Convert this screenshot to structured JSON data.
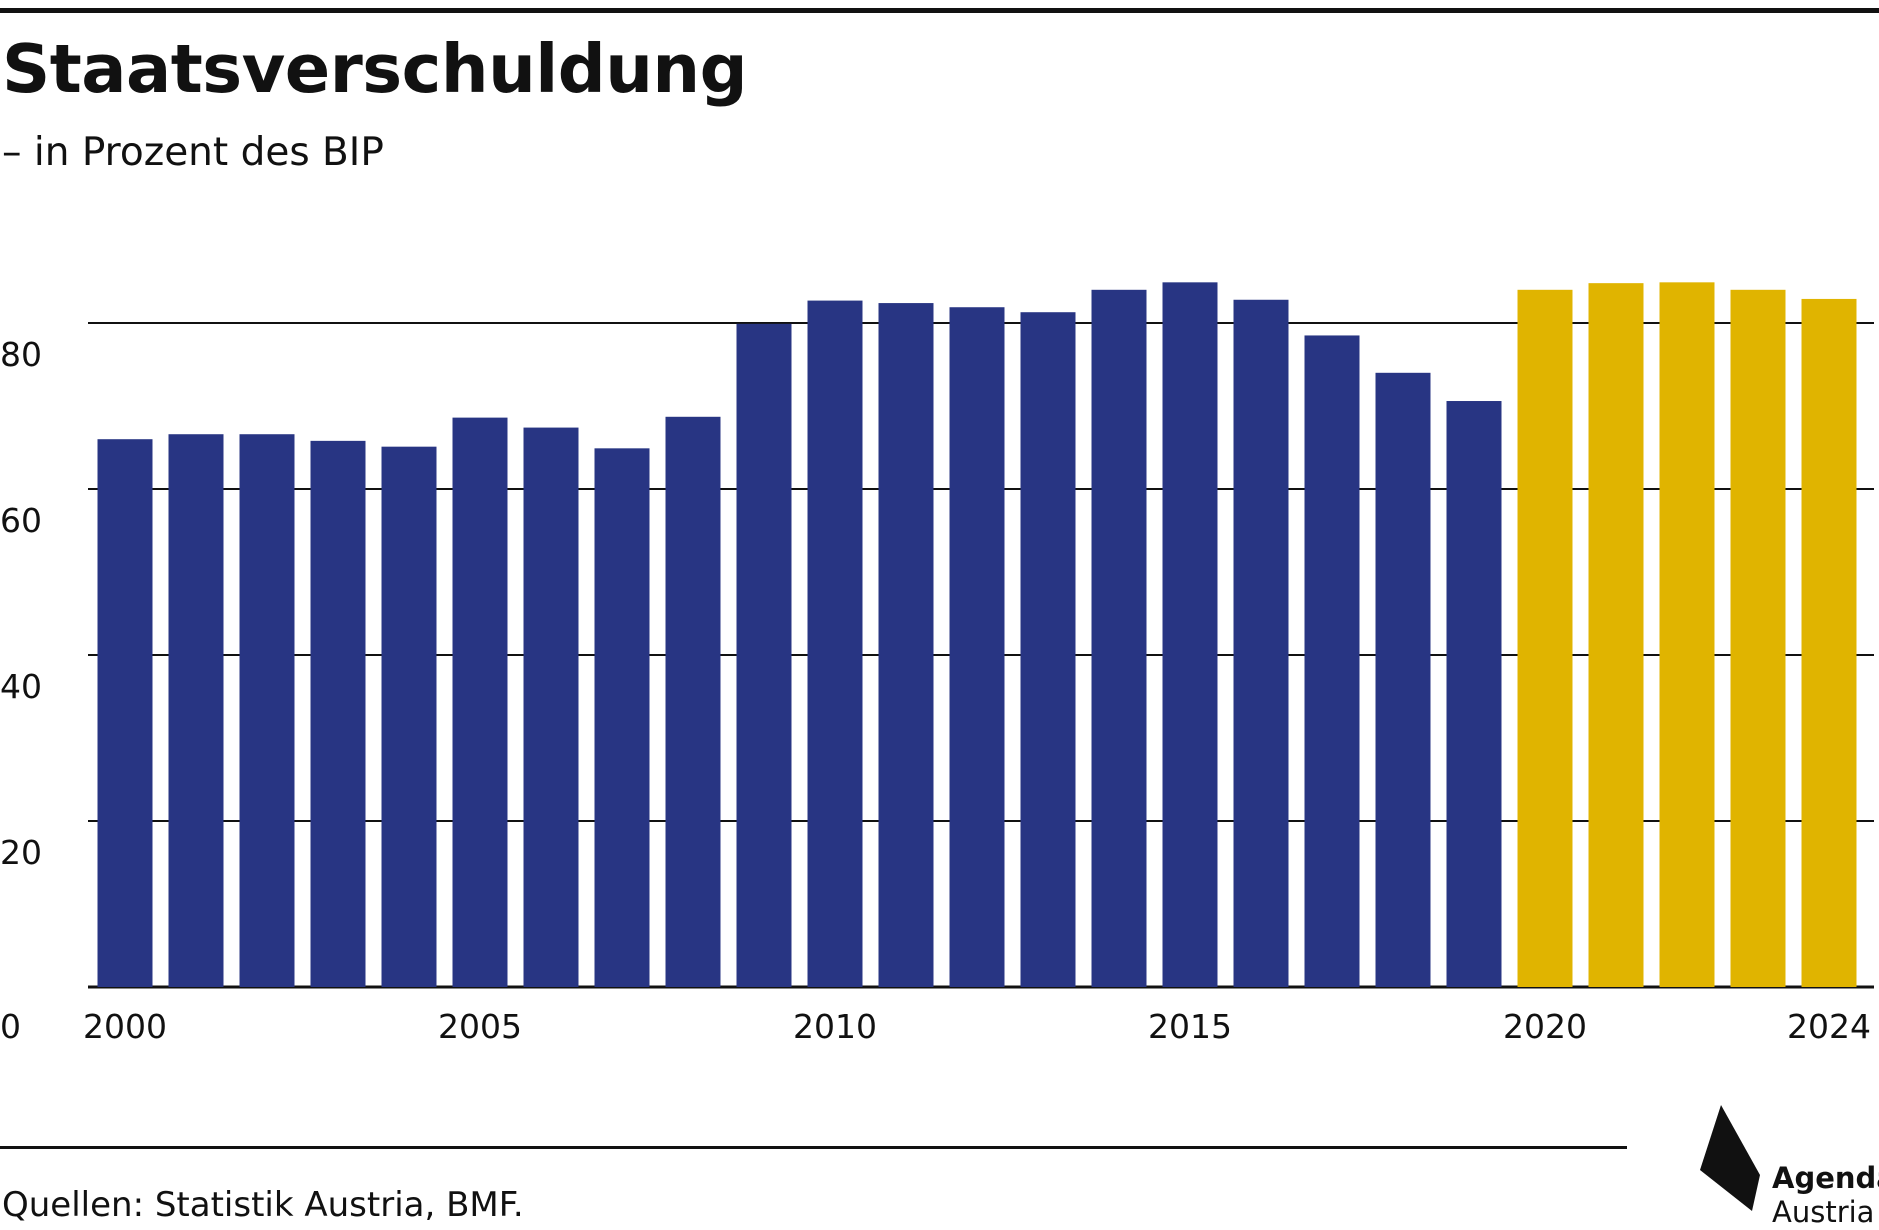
{
  "title": "Staatsverschuldung",
  "subtitle": "– in Prozent des BIP",
  "source": "Quellen: Statistik Austria, BMF.",
  "logo": {
    "line1": "Agenda",
    "line2": "Austria"
  },
  "colors": {
    "historical": "#283583",
    "forecast": "#E0B400",
    "text": "#111111",
    "grid": "#111111"
  },
  "chart_data": {
    "type": "bar",
    "title": "Staatsverschuldung",
    "subtitle": "– in Prozent des BIP",
    "xlabel": "",
    "ylabel": "",
    "ylim": [
      0,
      80
    ],
    "yticks": [
      0,
      20,
      40,
      60,
      80
    ],
    "grid": true,
    "categories": [
      "2000",
      "2001",
      "2002",
      "2003",
      "2004",
      "2005",
      "2006",
      "2007",
      "2008",
      "2009",
      "2010",
      "2011",
      "2012",
      "2013",
      "2014",
      "2015",
      "2016",
      "2017",
      "2018",
      "2019",
      "2020",
      "2021",
      "2022",
      "2023",
      "2024"
    ],
    "xtick_labels": [
      "2000",
      "2005",
      "2010",
      "2015",
      "2020",
      "2024"
    ],
    "values": [
      66.0,
      66.6,
      66.6,
      65.8,
      65.1,
      68.6,
      67.4,
      64.9,
      68.7,
      79.9,
      82.7,
      82.4,
      81.9,
      81.3,
      84.0,
      84.9,
      82.8,
      78.5,
      74.0,
      70.6,
      84.0,
      84.8,
      84.9,
      84.0,
      82.9
    ],
    "series_colors": [
      "historical",
      "historical",
      "historical",
      "historical",
      "historical",
      "historical",
      "historical",
      "historical",
      "historical",
      "historical",
      "historical",
      "historical",
      "historical",
      "historical",
      "historical",
      "historical",
      "historical",
      "historical",
      "historical",
      "historical",
      "forecast",
      "forecast",
      "forecast",
      "forecast",
      "forecast"
    ]
  }
}
